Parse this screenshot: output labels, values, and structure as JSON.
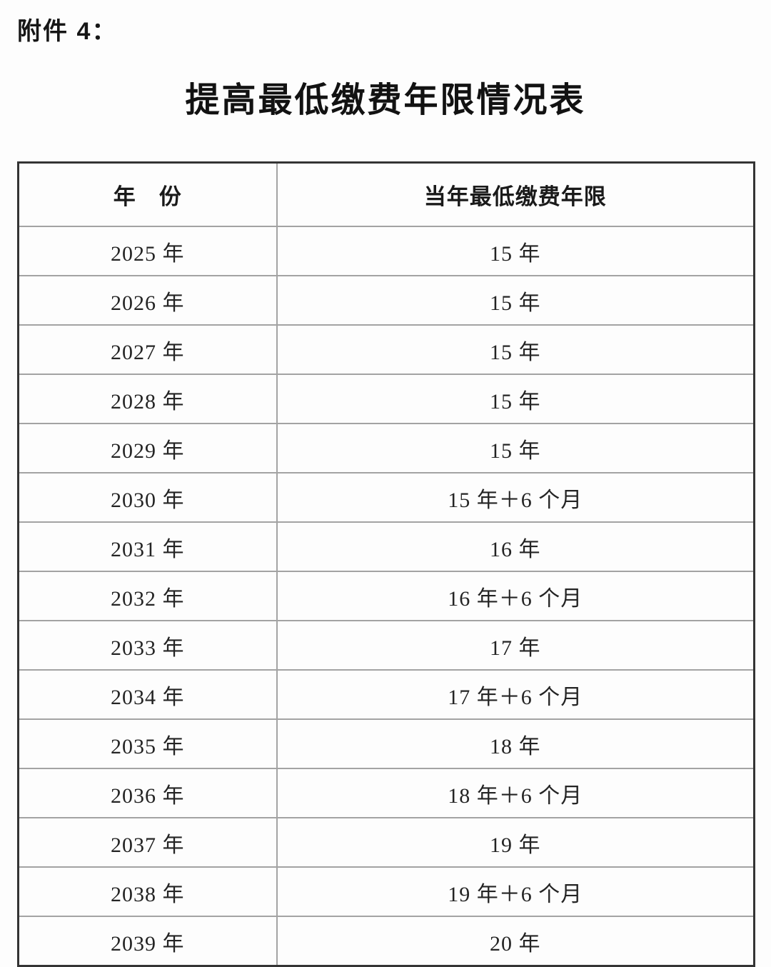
{
  "page": {
    "attachment_label": "附件 4：",
    "title": "提高最低缴费年限情况表"
  },
  "colors": {
    "background": "#fdfdfd",
    "text": "#1e1e1e",
    "outer_border": "#343434",
    "inner_border": "#a3a3a3"
  },
  "table": {
    "columns": [
      "年　份",
      "当年最低缴费年限"
    ],
    "rows": [
      {
        "year": "2025 年",
        "min_years": "15 年"
      },
      {
        "year": "2026 年",
        "min_years": "15 年"
      },
      {
        "year": "2027 年",
        "min_years": "15 年"
      },
      {
        "year": "2028 年",
        "min_years": "15 年"
      },
      {
        "year": "2029 年",
        "min_years": "15 年"
      },
      {
        "year": "2030 年",
        "min_years": "15 年＋6 个月"
      },
      {
        "year": "2031 年",
        "min_years": "16 年"
      },
      {
        "year": "2032 年",
        "min_years": "16 年＋6 个月"
      },
      {
        "year": "2033 年",
        "min_years": "17 年"
      },
      {
        "year": "2034 年",
        "min_years": "17 年＋6 个月"
      },
      {
        "year": "2035 年",
        "min_years": "18 年"
      },
      {
        "year": "2036 年",
        "min_years": "18 年＋6 个月"
      },
      {
        "year": "2037 年",
        "min_years": "19 年"
      },
      {
        "year": "2038 年",
        "min_years": "19 年＋6 个月"
      },
      {
        "year": "2039 年",
        "min_years": "20 年"
      }
    ]
  }
}
